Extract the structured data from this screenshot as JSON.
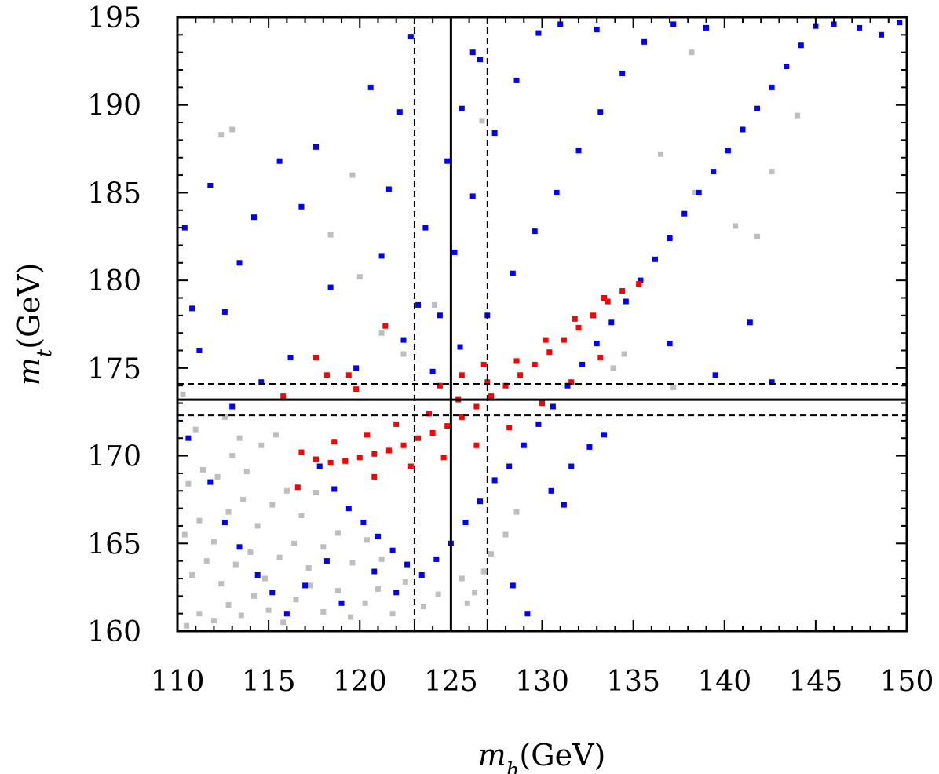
{
  "chart_data": {
    "type": "scatter",
    "title": "",
    "xlabel": {
      "symbol": "m",
      "sub": "h",
      "unit": "(GeV)"
    },
    "ylabel": {
      "symbol": "m",
      "sub": "t",
      "unit": "(GeV)"
    },
    "xlim": [
      110,
      150
    ],
    "ylim": [
      160,
      195
    ],
    "xticks": [
      110,
      115,
      120,
      125,
      130,
      135,
      140,
      145,
      150
    ],
    "yticks": [
      160,
      165,
      170,
      175,
      180,
      185,
      190,
      195
    ],
    "xtick_labels": [
      "110",
      "115",
      "120",
      "125",
      "130",
      "135",
      "140",
      "145",
      "150"
    ],
    "ytick_labels": [
      "160",
      "165",
      "170",
      "175",
      "180",
      "185",
      "190",
      "195"
    ],
    "grid": false,
    "legend": "none",
    "colors": {
      "gray": "#bebebe",
      "blue": "#0000ff",
      "red": "#ff0000"
    },
    "reference_lines": [
      {
        "orientation": "vertical",
        "value": 125,
        "style": "solid"
      },
      {
        "orientation": "vertical",
        "value": 123,
        "style": "dashed"
      },
      {
        "orientation": "vertical",
        "value": 127,
        "style": "dashed"
      },
      {
        "orientation": "horizontal",
        "value": 173.2,
        "style": "solid"
      },
      {
        "orientation": "horizontal",
        "value": 174.1,
        "style": "dashed"
      },
      {
        "orientation": "horizontal",
        "value": 172.3,
        "style": "dashed"
      }
    ],
    "series": [
      {
        "color": "gray",
        "points": [
          [
            110.5,
            160.3
          ],
          [
            111.2,
            161.0
          ],
          [
            112.0,
            160.6
          ],
          [
            112.8,
            161.5
          ],
          [
            113.5,
            160.9
          ],
          [
            114.2,
            162.0
          ],
          [
            115.0,
            161.2
          ],
          [
            115.8,
            160.5
          ],
          [
            116.5,
            161.8
          ],
          [
            117.3,
            162.6
          ],
          [
            118.0,
            161.1
          ],
          [
            118.8,
            162.3
          ],
          [
            119.5,
            160.8
          ],
          [
            120.3,
            161.6
          ],
          [
            121.0,
            162.4
          ],
          [
            121.8,
            161.0
          ],
          [
            122.5,
            162.8
          ],
          [
            123.5,
            161.4
          ],
          [
            124.3,
            162.1
          ],
          [
            110.8,
            163.2
          ],
          [
            111.6,
            164.0
          ],
          [
            112.4,
            162.7
          ],
          [
            113.2,
            163.8
          ],
          [
            114.0,
            164.5
          ],
          [
            114.8,
            163.0
          ],
          [
            115.6,
            164.2
          ],
          [
            116.4,
            165.0
          ],
          [
            117.2,
            163.6
          ],
          [
            118.0,
            164.8
          ],
          [
            118.8,
            165.6
          ],
          [
            119.6,
            163.9
          ],
          [
            120.4,
            165.2
          ],
          [
            121.2,
            164.1
          ],
          [
            110.4,
            165.5
          ],
          [
            111.2,
            166.3
          ],
          [
            112.0,
            165.1
          ],
          [
            112.8,
            166.8
          ],
          [
            113.6,
            167.5
          ],
          [
            114.4,
            166.0
          ],
          [
            115.2,
            167.2
          ],
          [
            116.0,
            168.0
          ],
          [
            116.8,
            166.6
          ],
          [
            117.6,
            167.9
          ],
          [
            110.6,
            168.4
          ],
          [
            111.4,
            169.2
          ],
          [
            112.2,
            168.8
          ],
          [
            113.0,
            170.0
          ],
          [
            113.8,
            169.1
          ],
          [
            114.6,
            170.6
          ],
          [
            115.4,
            171.2
          ],
          [
            111.0,
            171.5
          ],
          [
            112.6,
            172.2
          ],
          [
            113.4,
            171.0
          ],
          [
            110.3,
            173.5
          ],
          [
            125.6,
            163.0
          ],
          [
            126.3,
            162.2
          ],
          [
            127.2,
            164.4
          ],
          [
            128.0,
            165.5
          ],
          [
            128.6,
            166.8
          ],
          [
            125.9,
            161.6
          ],
          [
            126.8,
            163.4
          ],
          [
            121.2,
            177.0
          ],
          [
            122.4,
            175.8
          ],
          [
            124.1,
            178.6
          ],
          [
            120.0,
            180.2
          ],
          [
            118.4,
            182.6
          ],
          [
            119.6,
            186.0
          ],
          [
            113.0,
            188.6
          ],
          [
            112.4,
            188.3
          ],
          [
            136.5,
            187.2
          ],
          [
            138.4,
            185.0
          ],
          [
            140.6,
            183.1
          ],
          [
            141.8,
            182.5
          ],
          [
            142.6,
            186.2
          ],
          [
            144.0,
            189.4
          ],
          [
            138.2,
            193.0
          ],
          [
            134.5,
            175.8
          ],
          [
            133.9,
            175.0
          ],
          [
            137.2,
            173.9
          ],
          [
            126.7,
            189.1
          ]
        ]
      },
      {
        "color": "blue",
        "points": [
          [
            117.8,
            169.4
          ],
          [
            118.6,
            168.1
          ],
          [
            119.4,
            167.0
          ],
          [
            120.2,
            166.2
          ],
          [
            121.0,
            165.4
          ],
          [
            121.8,
            164.6
          ],
          [
            122.6,
            163.8
          ],
          [
            123.4,
            163.2
          ],
          [
            124.2,
            164.1
          ],
          [
            125.0,
            165.0
          ],
          [
            125.8,
            166.2
          ],
          [
            126.6,
            167.4
          ],
          [
            127.4,
            168.6
          ],
          [
            128.2,
            169.4
          ],
          [
            129.0,
            170.6
          ],
          [
            129.8,
            171.8
          ],
          [
            130.6,
            172.8
          ],
          [
            131.4,
            174.0
          ],
          [
            132.2,
            175.2
          ],
          [
            133.0,
            176.4
          ],
          [
            133.8,
            177.6
          ],
          [
            134.6,
            178.8
          ],
          [
            135.4,
            180.0
          ],
          [
            136.2,
            181.2
          ],
          [
            137.0,
            182.4
          ],
          [
            137.8,
            183.8
          ],
          [
            138.6,
            185.0
          ],
          [
            139.4,
            186.2
          ],
          [
            140.2,
            187.4
          ],
          [
            141.0,
            188.6
          ],
          [
            141.8,
            189.8
          ],
          [
            142.6,
            191.0
          ],
          [
            143.4,
            192.2
          ],
          [
            144.2,
            193.4
          ],
          [
            145.0,
            194.5
          ],
          [
            146.0,
            194.6
          ],
          [
            147.4,
            194.4
          ],
          [
            148.6,
            194.0
          ],
          [
            149.6,
            194.7
          ],
          [
            124.0,
            174.8
          ],
          [
            125.5,
            176.2
          ],
          [
            127.0,
            178.0
          ],
          [
            128.4,
            180.4
          ],
          [
            129.6,
            182.8
          ],
          [
            130.8,
            185.0
          ],
          [
            132.0,
            187.4
          ],
          [
            133.2,
            189.6
          ],
          [
            134.4,
            191.8
          ],
          [
            135.6,
            193.6
          ],
          [
            137.2,
            194.6
          ],
          [
            139.0,
            194.4
          ],
          [
            124.4,
            178.0
          ],
          [
            125.2,
            181.6
          ],
          [
            126.2,
            184.8
          ],
          [
            127.4,
            188.4
          ],
          [
            128.6,
            191.4
          ],
          [
            129.8,
            194.1
          ],
          [
            131.0,
            194.6
          ],
          [
            133.0,
            194.3
          ],
          [
            123.6,
            183.0
          ],
          [
            124.8,
            186.8
          ],
          [
            125.6,
            189.8
          ],
          [
            126.6,
            192.6
          ],
          [
            110.6,
            171.0
          ],
          [
            111.8,
            168.5
          ],
          [
            112.6,
            166.2
          ],
          [
            113.4,
            164.8
          ],
          [
            114.4,
            163.2
          ],
          [
            115.2,
            162.2
          ],
          [
            116.0,
            161.0
          ],
          [
            117.0,
            162.6
          ],
          [
            118.2,
            164.0
          ],
          [
            119.0,
            161.6
          ],
          [
            120.8,
            163.4
          ],
          [
            122.0,
            162.2
          ],
          [
            111.2,
            176.0
          ],
          [
            112.6,
            178.2
          ],
          [
            113.4,
            181.0
          ],
          [
            114.2,
            183.6
          ],
          [
            111.8,
            185.4
          ],
          [
            115.6,
            186.8
          ],
          [
            116.8,
            184.2
          ],
          [
            117.6,
            187.6
          ],
          [
            118.4,
            179.6
          ],
          [
            119.8,
            175.0
          ],
          [
            121.2,
            181.4
          ],
          [
            122.2,
            189.6
          ],
          [
            122.8,
            193.9
          ],
          [
            121.6,
            185.2
          ],
          [
            120.6,
            191.0
          ],
          [
            116.2,
            175.6
          ],
          [
            114.6,
            174.2
          ],
          [
            110.4,
            183.0
          ],
          [
            110.8,
            178.4
          ],
          [
            113.0,
            172.8
          ],
          [
            130.5,
            168.0
          ],
          [
            131.6,
            169.4
          ],
          [
            132.6,
            170.5
          ],
          [
            133.4,
            171.2
          ],
          [
            131.2,
            167.2
          ],
          [
            137.0,
            176.4
          ],
          [
            139.5,
            174.6
          ],
          [
            141.4,
            177.6
          ],
          [
            142.6,
            174.2
          ],
          [
            128.4,
            162.6
          ],
          [
            129.2,
            161.0
          ],
          [
            123.2,
            178.6
          ],
          [
            122.4,
            176.6
          ],
          [
            126.2,
            193.0
          ]
        ]
      },
      {
        "color": "red",
        "points": [
          [
            116.8,
            170.2
          ],
          [
            117.6,
            169.8
          ],
          [
            118.4,
            169.6
          ],
          [
            119.2,
            169.7
          ],
          [
            120.0,
            169.9
          ],
          [
            120.8,
            170.1
          ],
          [
            121.6,
            170.3
          ],
          [
            122.4,
            170.6
          ],
          [
            123.2,
            171.0
          ],
          [
            124.0,
            171.3
          ],
          [
            124.8,
            171.7
          ],
          [
            125.6,
            172.2
          ],
          [
            126.4,
            172.8
          ],
          [
            127.2,
            173.4
          ],
          [
            128.0,
            174.0
          ],
          [
            128.8,
            174.6
          ],
          [
            129.6,
            175.2
          ],
          [
            130.4,
            175.9
          ],
          [
            131.2,
            176.6
          ],
          [
            132.0,
            177.3
          ],
          [
            132.8,
            178.0
          ],
          [
            133.6,
            178.8
          ],
          [
            134.4,
            179.4
          ],
          [
            135.3,
            179.8
          ],
          [
            118.6,
            170.8
          ],
          [
            120.4,
            171.2
          ],
          [
            122.0,
            171.8
          ],
          [
            123.8,
            172.4
          ],
          [
            125.4,
            173.2
          ],
          [
            127.0,
            174.2
          ],
          [
            128.6,
            175.4
          ],
          [
            130.2,
            176.6
          ],
          [
            131.8,
            177.8
          ],
          [
            133.4,
            179.0
          ],
          [
            120.8,
            168.8
          ],
          [
            122.8,
            169.4
          ],
          [
            124.6,
            169.9
          ],
          [
            126.4,
            170.6
          ],
          [
            128.2,
            171.6
          ],
          [
            130.0,
            173.0
          ],
          [
            131.6,
            174.2
          ],
          [
            133.2,
            175.6
          ],
          [
            124.4,
            174.0
          ],
          [
            125.6,
            174.6
          ],
          [
            126.8,
            175.2
          ],
          [
            117.6,
            175.6
          ],
          [
            118.2,
            174.6
          ],
          [
            119.4,
            174.6
          ],
          [
            121.4,
            177.4
          ],
          [
            115.8,
            173.4
          ],
          [
            116.6,
            168.2
          ],
          [
            119.8,
            173.8
          ]
        ]
      }
    ]
  }
}
